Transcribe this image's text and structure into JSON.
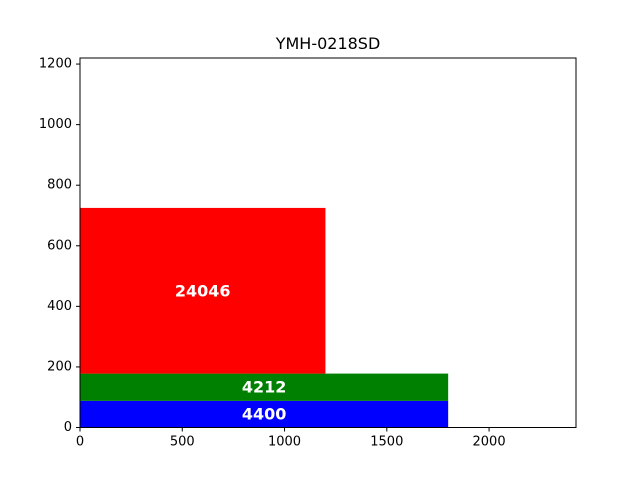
{
  "chart_data": {
    "type": "bar",
    "title": "YMH-0218SD",
    "xlim": [
      0,
      2425
    ],
    "ylim": [
      0,
      1220
    ],
    "x_ticks": [
      0,
      500,
      1000,
      1500,
      2000
    ],
    "y_ticks": [
      0,
      200,
      400,
      600,
      800,
      1000,
      1200
    ],
    "grid": false,
    "rects": [
      {
        "x0": 0,
        "x1": 1800,
        "y0": 0,
        "y1": 88,
        "color": "#0000ff",
        "label": "4400"
      },
      {
        "x0": 0,
        "x1": 1800,
        "y0": 88,
        "y1": 178,
        "color": "#008000",
        "label": "4212"
      },
      {
        "x0": 0,
        "x1": 1200,
        "y0": 178,
        "y1": 725,
        "color": "#ff0000",
        "label": "24046"
      }
    ]
  }
}
